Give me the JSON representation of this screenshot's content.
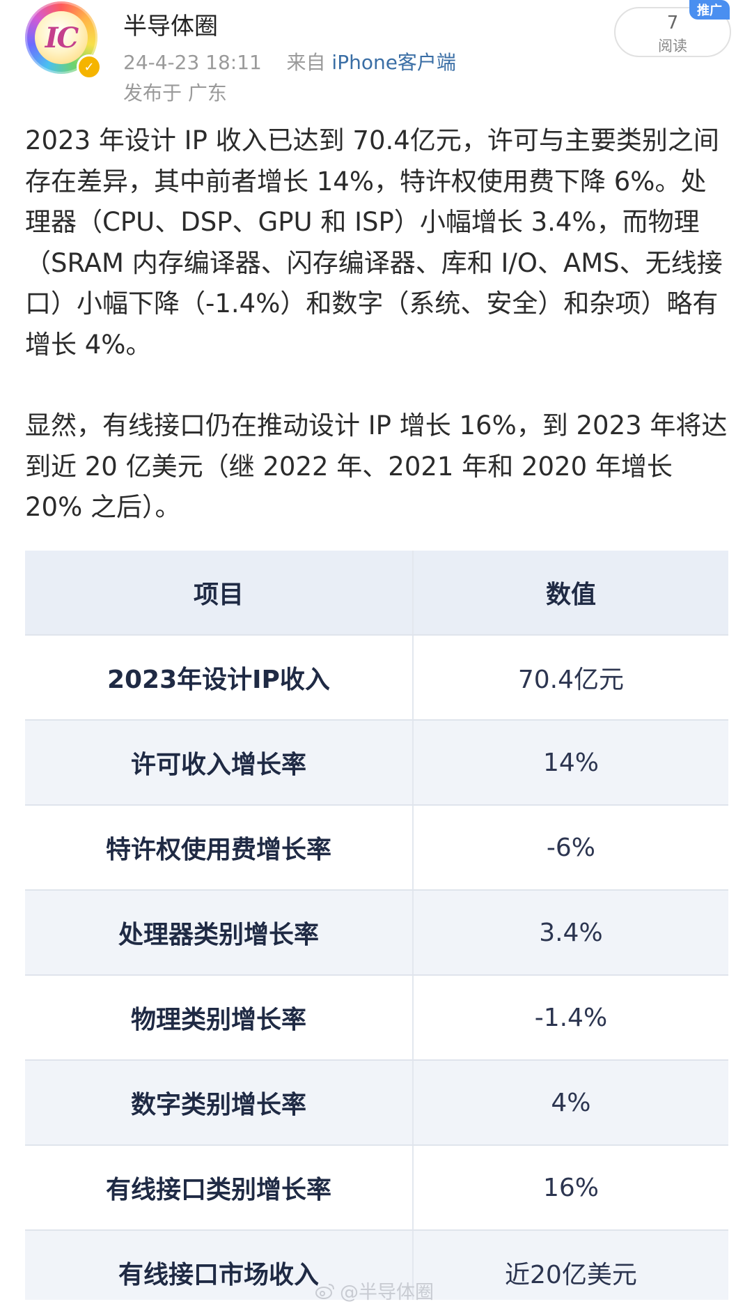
{
  "post": {
    "author": "半导体圈",
    "date": "24-4-23 18:11",
    "source_prefix": "来自",
    "client": "iPhone客户端",
    "location": "发布于 广东",
    "read_count": "7",
    "read_label": "阅读",
    "promo_badge": "推广",
    "avatar_icon": "ic-logo-avatar",
    "verified_icon": "verified-badge-icon",
    "colors": {
      "link": "#3a6ea5",
      "badge": "#4a8ff0",
      "verified": "#f5b400"
    }
  },
  "body": {
    "paragraph1": "2023 年设计 IP 收入已达到 70.4亿元，许可与主要类别之间存在差异，其中前者增长 14%，特许权使用费下降 6%。处理器（CPU、DSP、GPU 和 ISP）小幅增长 3.4%，而物理（SRAM 内存编译器、闪存编译器、库和 I/O、AMS、无线接口）小幅下降（-1.4%）和数字（系统、安全）和杂项）略有增长 4%。",
    "paragraph2": "显然，有线接口仍在推动设计 IP 增长 16%，到 2023 年将达到近 20 亿美元（继 2022 年、2021 年和 2020 年增长 20% 之后）。"
  },
  "table": {
    "headers": {
      "item": "项目",
      "value": "数值"
    },
    "rows": [
      {
        "item": "2023年设计IP收入",
        "value": "70.4亿元"
      },
      {
        "item": "许可收入增长率",
        "value": "14%"
      },
      {
        "item": "特许权使用费增长率",
        "value": "-6%"
      },
      {
        "item": "处理器类别增长率",
        "value": "3.4%"
      },
      {
        "item": "物理类别增长率",
        "value": "-1.4%"
      },
      {
        "item": "数字类别增长率",
        "value": "4%"
      },
      {
        "item": "有线接口类别增长率",
        "value": "16%"
      },
      {
        "item": "有线接口市场收入",
        "value": "近20亿美元"
      }
    ]
  },
  "watermark": {
    "text": "@半导体圈",
    "icon": "weibo-icon"
  }
}
